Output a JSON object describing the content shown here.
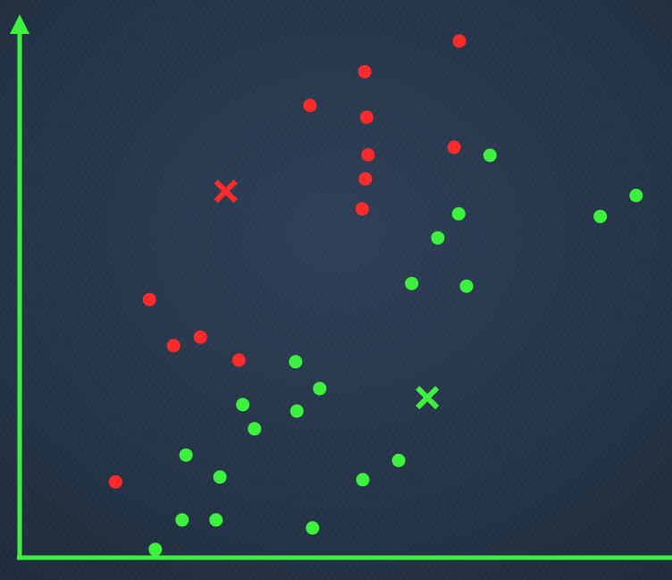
{
  "chart_data": {
    "type": "scatter",
    "xlim": [
      0,
      100
    ],
    "ylim": [
      0,
      100
    ],
    "series": [
      {
        "color": "#ff2a2a",
        "marker": "circle",
        "x": [
          67.4,
          52.9,
          44.5,
          53.2,
          53.4,
          66.6,
          53.0,
          52.5,
          19.9,
          23.6,
          27.7,
          33.6,
          14.7
        ],
        "values": [
          96.0,
          90.3,
          84.0,
          81.8,
          74.8,
          76.2,
          70.3,
          64.7,
          47.8,
          39.2,
          40.8,
          36.5,
          13.8
        ]
      },
      {
        "color": "#3df23d",
        "marker": "circle",
        "x": [
          72.1,
          94.5,
          89.0,
          67.3,
          64.1,
          60.1,
          68.5,
          42.3,
          46.0,
          34.2,
          42.5,
          36.0,
          25.5,
          58.1,
          30.7,
          52.6,
          24.9,
          30.1,
          44.9,
          20.8
        ],
        "values": [
          74.7,
          67.2,
          63.3,
          63.8,
          59.3,
          50.8,
          50.3,
          36.2,
          31.2,
          28.2,
          27.0,
          23.7,
          18.8,
          17.8,
          14.7,
          14.2,
          6.7,
          6.7,
          5.2,
          1.2
        ]
      },
      {
        "color": "#ff2a2a",
        "marker": "x",
        "x": [
          31.6
        ],
        "values": [
          68.0
        ]
      },
      {
        "color": "#3df23d",
        "marker": "x",
        "x": [
          62.5
        ],
        "values": [
          29.5
        ]
      }
    ]
  }
}
